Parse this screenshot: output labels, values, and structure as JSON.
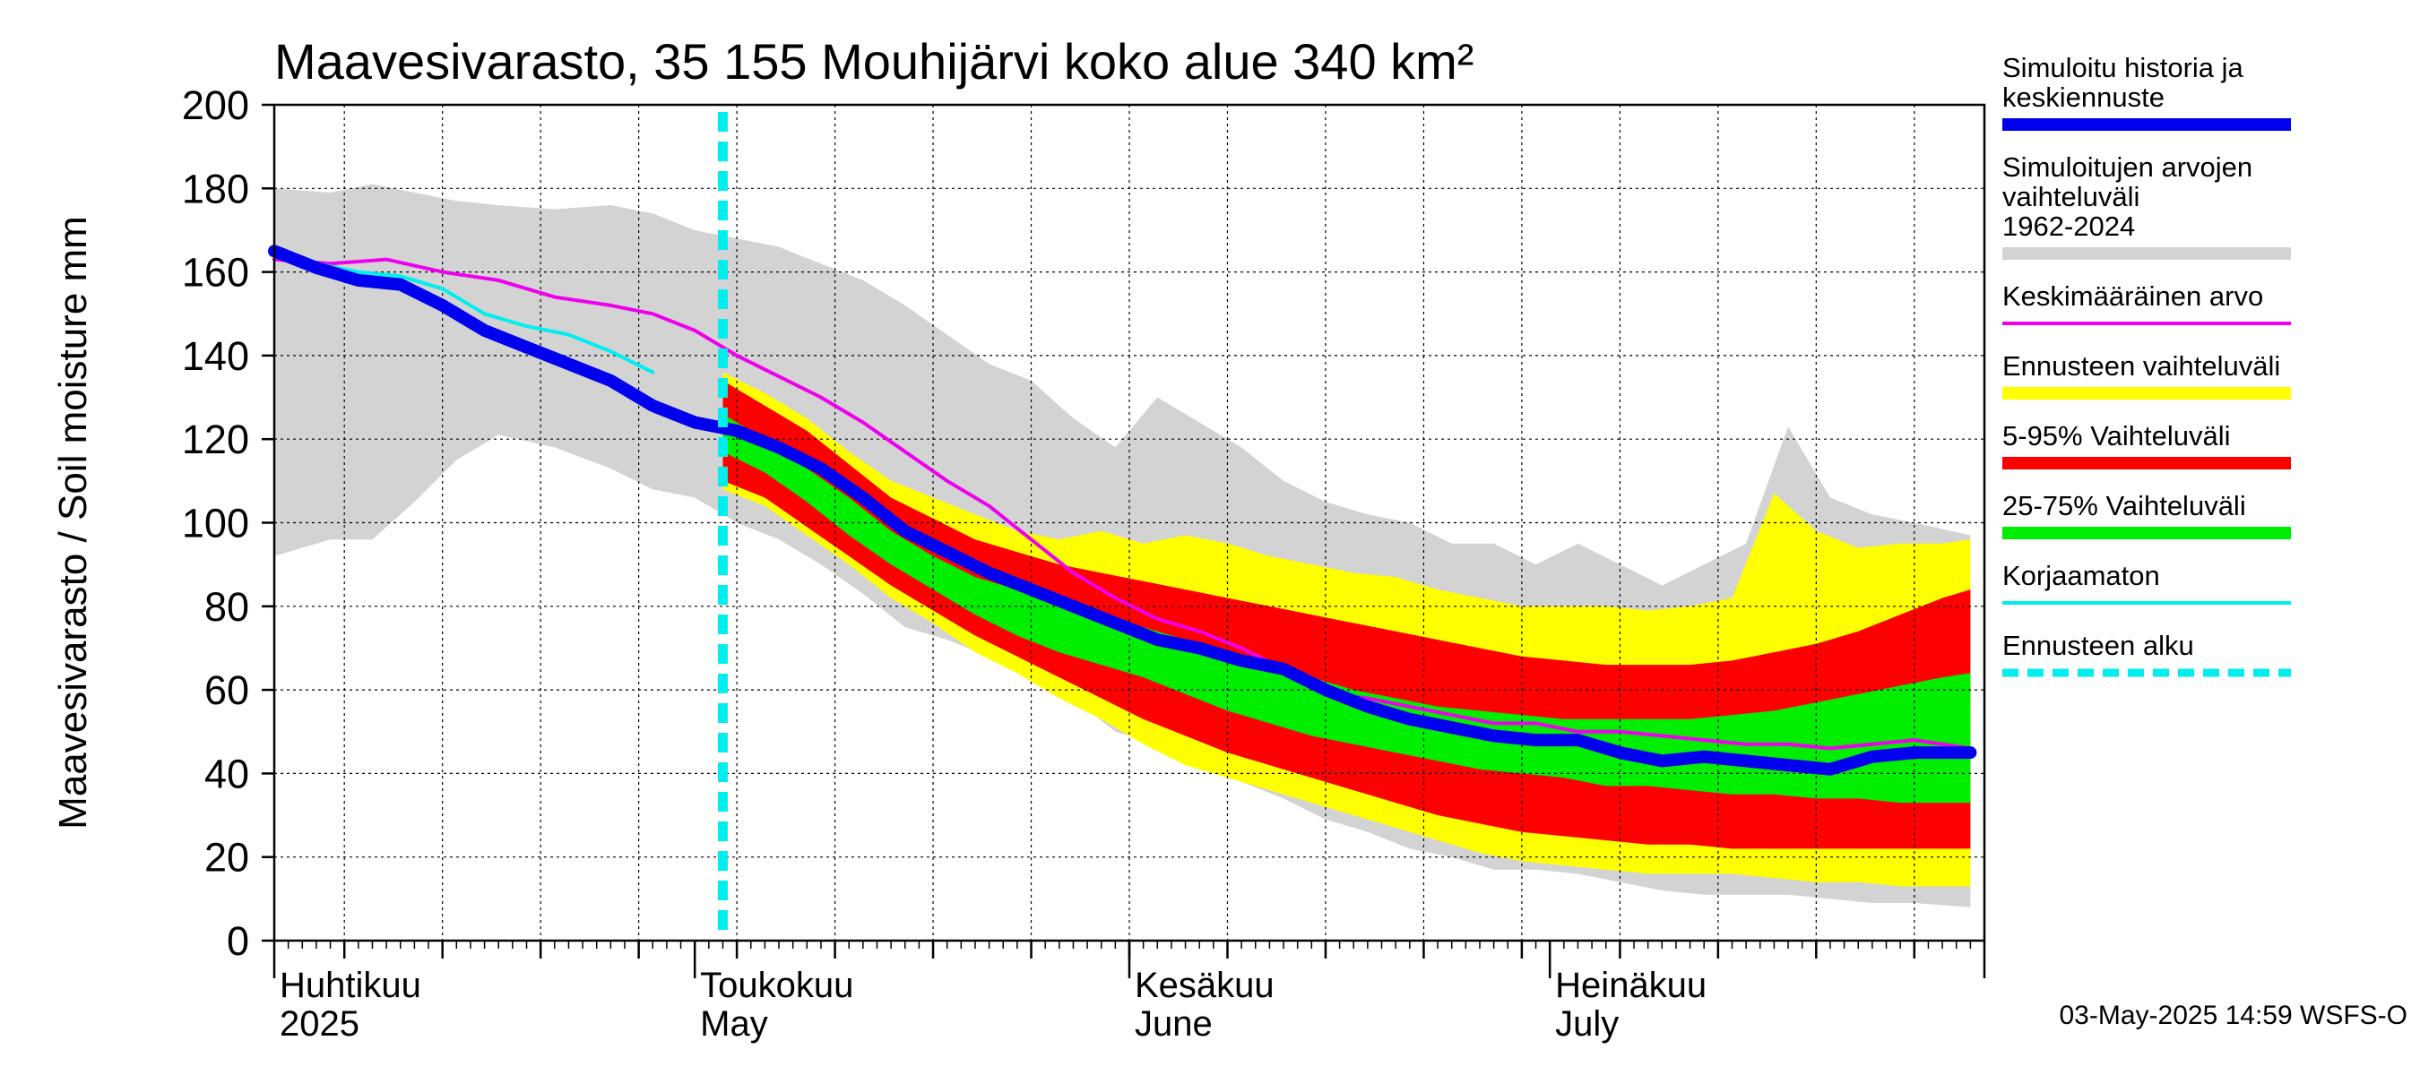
{
  "chart_data": {
    "type": "area",
    "title": "Maavesivarasto, 35 155 Mouhijärvi koko alue 340 km²",
    "ylabel": "Maavesivarasto / Soil moisture   mm",
    "xlabel": "",
    "ylim": [
      0,
      200
    ],
    "yticks": [
      0,
      20,
      40,
      60,
      80,
      100,
      120,
      140,
      160,
      180,
      200
    ],
    "xlim": [
      "2025-04-01",
      "2025-08-01"
    ],
    "grid": true,
    "forecast_start": "2025-05-03",
    "month_labels": [
      {
        "date": "2025-04-01",
        "fi": "Huhtikuu",
        "en": "2025"
      },
      {
        "date": "2025-05-01",
        "fi": "Toukokuu",
        "en": "May"
      },
      {
        "date": "2025-06-01",
        "fi": "Kesäkuu",
        "en": "June"
      },
      {
        "date": "2025-07-01",
        "fi": "Heinäkuu",
        "en": "July"
      }
    ],
    "legend_position": "right",
    "legend": [
      {
        "label": "Simuloitu historia ja keskiennuste",
        "color": "#0000ee",
        "style": "thick"
      },
      {
        "label": "Simuloitujen arvojen vaihteluväli 1962-2024",
        "color": "#d3d3d3",
        "style": "band"
      },
      {
        "label": "Keskimääräinen arvo",
        "color": "#ee00ee",
        "style": "line"
      },
      {
        "label": "Ennusteen vaihteluväli",
        "color": "#ffff00",
        "style": "band"
      },
      {
        "label": "5-95% Vaihteluväli",
        "color": "#ff0000",
        "style": "band"
      },
      {
        "label": "25-75% Vaihteluväli",
        "color": "#00ee00",
        "style": "band"
      },
      {
        "label": "Korjaamaton",
        "color": "#00eeee",
        "style": "line"
      },
      {
        "label": "Ennusteen alku",
        "color": "#00eeee",
        "style": "dashed"
      }
    ],
    "series": {
      "history_range": {
        "name": "Simuloitujen arvojen vaihteluväli 1962-2024",
        "x": [
          "2025-04-01",
          "2025-04-05",
          "2025-04-08",
          "2025-04-11",
          "2025-04-14",
          "2025-04-17",
          "2025-04-21",
          "2025-04-25",
          "2025-04-28",
          "2025-05-01",
          "2025-05-04",
          "2025-05-07",
          "2025-05-10",
          "2025-05-13",
          "2025-05-16",
          "2025-05-19",
          "2025-05-22",
          "2025-05-25",
          "2025-05-28",
          "2025-05-31",
          "2025-06-03",
          "2025-06-06",
          "2025-06-09",
          "2025-06-12",
          "2025-06-15",
          "2025-06-18",
          "2025-06-21",
          "2025-06-24",
          "2025-06-27",
          "2025-06-30",
          "2025-07-03",
          "2025-07-06",
          "2025-07-09",
          "2025-07-12",
          "2025-07-15",
          "2025-07-18",
          "2025-07-21",
          "2025-07-24",
          "2025-07-27",
          "2025-07-31"
        ],
        "upper": [
          180,
          179,
          181,
          179,
          177,
          176,
          175,
          176,
          174,
          170,
          168,
          166,
          162,
          158,
          152,
          145,
          138,
          134,
          125,
          118,
          130,
          124,
          118,
          110,
          105,
          102,
          100,
          95,
          95,
          90,
          95,
          90,
          85,
          90,
          95,
          123,
          106,
          102,
          100,
          97
        ],
        "lower": [
          92,
          96,
          96,
          105,
          115,
          121,
          118,
          113,
          108,
          106,
          100,
          96,
          90,
          83,
          75,
          72,
          68,
          65,
          58,
          50,
          47,
          44,
          38,
          34,
          29,
          26,
          22,
          20,
          17,
          17,
          16,
          14,
          12,
          11,
          11,
          11,
          10,
          9,
          9,
          8
        ]
      },
      "forecast_range": {
        "name": "Ennusteen vaihteluväli",
        "x": [
          "2025-05-03",
          "2025-05-06",
          "2025-05-09",
          "2025-05-12",
          "2025-05-15",
          "2025-05-18",
          "2025-05-21",
          "2025-05-24",
          "2025-05-27",
          "2025-05-30",
          "2025-06-02",
          "2025-06-05",
          "2025-06-08",
          "2025-06-11",
          "2025-06-14",
          "2025-06-17",
          "2025-06-20",
          "2025-06-23",
          "2025-06-26",
          "2025-06-29",
          "2025-07-02",
          "2025-07-05",
          "2025-07-08",
          "2025-07-11",
          "2025-07-14",
          "2025-07-17",
          "2025-07-20",
          "2025-07-23",
          "2025-07-26",
          "2025-07-29",
          "2025-07-31"
        ],
        "upper": [
          136,
          131,
          125,
          117,
          110,
          106,
          102,
          98,
          96,
          98,
          95,
          97,
          95,
          92,
          90,
          88,
          87,
          84,
          82,
          80,
          80,
          80,
          79,
          80,
          82,
          107,
          98,
          94,
          95,
          95,
          96
        ],
        "lower": [
          108,
          104,
          97,
          90,
          82,
          76,
          69,
          64,
          58,
          53,
          47,
          42,
          39,
          36,
          33,
          30,
          27,
          24,
          21,
          19,
          18,
          17,
          16,
          16,
          16,
          15,
          14,
          14,
          13,
          13,
          13
        ]
      },
      "p5_95": {
        "name": "5-95% Vaihteluväli",
        "x": [
          "2025-05-03",
          "2025-05-06",
          "2025-05-09",
          "2025-05-12",
          "2025-05-15",
          "2025-05-18",
          "2025-05-21",
          "2025-05-24",
          "2025-05-27",
          "2025-05-30",
          "2025-06-02",
          "2025-06-05",
          "2025-06-08",
          "2025-06-11",
          "2025-06-14",
          "2025-06-17",
          "2025-06-20",
          "2025-06-23",
          "2025-06-26",
          "2025-06-29",
          "2025-07-02",
          "2025-07-05",
          "2025-07-08",
          "2025-07-11",
          "2025-07-14",
          "2025-07-17",
          "2025-07-20",
          "2025-07-23",
          "2025-07-26",
          "2025-07-29",
          "2025-07-31"
        ],
        "upper": [
          134,
          128,
          122,
          114,
          106,
          101,
          96,
          93,
          90,
          88,
          86,
          84,
          82,
          80,
          78,
          76,
          74,
          72,
          70,
          68,
          67,
          66,
          66,
          66,
          67,
          69,
          71,
          74,
          78,
          82,
          84
        ],
        "lower": [
          110,
          106,
          99,
          92,
          85,
          79,
          73,
          68,
          63,
          58,
          53,
          49,
          45,
          42,
          39,
          36,
          33,
          30,
          28,
          26,
          25,
          24,
          23,
          23,
          22,
          22,
          22,
          22,
          22,
          22,
          22
        ]
      },
      "p25_75": {
        "name": "25-75% Vaihteluväli",
        "x": [
          "2025-05-03",
          "2025-05-06",
          "2025-05-09",
          "2025-05-12",
          "2025-05-15",
          "2025-05-18",
          "2025-05-21",
          "2025-05-24",
          "2025-05-27",
          "2025-05-30",
          "2025-06-02",
          "2025-06-05",
          "2025-06-08",
          "2025-06-11",
          "2025-06-14",
          "2025-06-17",
          "2025-06-20",
          "2025-06-23",
          "2025-06-26",
          "2025-06-29",
          "2025-07-02",
          "2025-07-05",
          "2025-07-08",
          "2025-07-11",
          "2025-07-14",
          "2025-07-17",
          "2025-07-20",
          "2025-07-23",
          "2025-07-26",
          "2025-07-29",
          "2025-07-31"
        ],
        "upper": [
          126,
          120,
          113,
          106,
          98,
          92,
          87,
          84,
          81,
          78,
          75,
          72,
          69,
          66,
          63,
          60,
          58,
          56,
          55,
          54,
          53,
          53,
          53,
          53,
          54,
          55,
          57,
          59,
          61,
          63,
          64
        ],
        "lower": [
          117,
          112,
          105,
          97,
          90,
          84,
          78,
          73,
          69,
          66,
          63,
          59,
          55,
          52,
          49,
          47,
          45,
          43,
          41,
          40,
          39,
          37,
          37,
          36,
          35,
          35,
          34,
          34,
          33,
          33,
          33
        ]
      },
      "mean": {
        "name": "Keskimääräinen arvo",
        "x": [
          "2025-04-01",
          "2025-04-05",
          "2025-04-09",
          "2025-04-13",
          "2025-04-17",
          "2025-04-21",
          "2025-04-25",
          "2025-04-28",
          "2025-05-01",
          "2025-05-04",
          "2025-05-07",
          "2025-05-10",
          "2025-05-13",
          "2025-05-16",
          "2025-05-19",
          "2025-05-22",
          "2025-05-25",
          "2025-05-28",
          "2025-05-31",
          "2025-06-03",
          "2025-06-06",
          "2025-06-09",
          "2025-06-12",
          "2025-06-15",
          "2025-06-18",
          "2025-06-21",
          "2025-06-24",
          "2025-06-27",
          "2025-06-30",
          "2025-07-03",
          "2025-07-06",
          "2025-07-09",
          "2025-07-12",
          "2025-07-15",
          "2025-07-18",
          "2025-07-21",
          "2025-07-24",
          "2025-07-27",
          "2025-07-31"
        ],
        "values": [
          163,
          162,
          163,
          160,
          158,
          154,
          152,
          150,
          146,
          140,
          135,
          130,
          124,
          117,
          110,
          104,
          96,
          88,
          82,
          77,
          74,
          70,
          65,
          59,
          58,
          56,
          54,
          52,
          52,
          50,
          50,
          49,
          48,
          47,
          47,
          46,
          47,
          48,
          46
        ]
      },
      "median_forecast": {
        "name": "Simuloitu historia ja keskiennuste",
        "x": [
          "2025-04-01",
          "2025-04-04",
          "2025-04-07",
          "2025-04-10",
          "2025-04-13",
          "2025-04-16",
          "2025-04-19",
          "2025-04-22",
          "2025-04-25",
          "2025-04-28",
          "2025-05-01",
          "2025-05-04",
          "2025-05-07",
          "2025-05-10",
          "2025-05-13",
          "2025-05-16",
          "2025-05-19",
          "2025-05-22",
          "2025-05-25",
          "2025-05-28",
          "2025-05-31",
          "2025-06-03",
          "2025-06-06",
          "2025-06-09",
          "2025-06-12",
          "2025-06-15",
          "2025-06-18",
          "2025-06-21",
          "2025-06-24",
          "2025-06-27",
          "2025-06-30",
          "2025-07-03",
          "2025-07-06",
          "2025-07-09",
          "2025-07-12",
          "2025-07-15",
          "2025-07-18",
          "2025-07-21",
          "2025-07-24",
          "2025-07-27",
          "2025-07-31"
        ],
        "values": [
          165,
          161,
          158,
          157,
          152,
          146,
          142,
          138,
          134,
          128,
          124,
          122,
          118,
          113,
          106,
          98,
          93,
          88,
          84,
          80,
          76,
          72,
          70,
          67,
          65,
          60,
          56,
          53,
          51,
          49,
          48,
          48,
          45,
          43,
          44,
          43,
          42,
          41,
          44,
          45,
          45
        ]
      },
      "uncorrected": {
        "name": "Korjaamaton",
        "x": [
          "2025-04-01",
          "2025-04-04",
          "2025-04-07",
          "2025-04-10",
          "2025-04-13",
          "2025-04-16",
          "2025-04-19",
          "2025-04-22",
          "2025-04-25",
          "2025-04-28"
        ],
        "values": [
          165,
          162,
          160,
          159,
          156,
          150,
          147,
          145,
          141,
          136
        ]
      }
    }
  },
  "footer": "03-May-2025 14:59 WSFS-O"
}
